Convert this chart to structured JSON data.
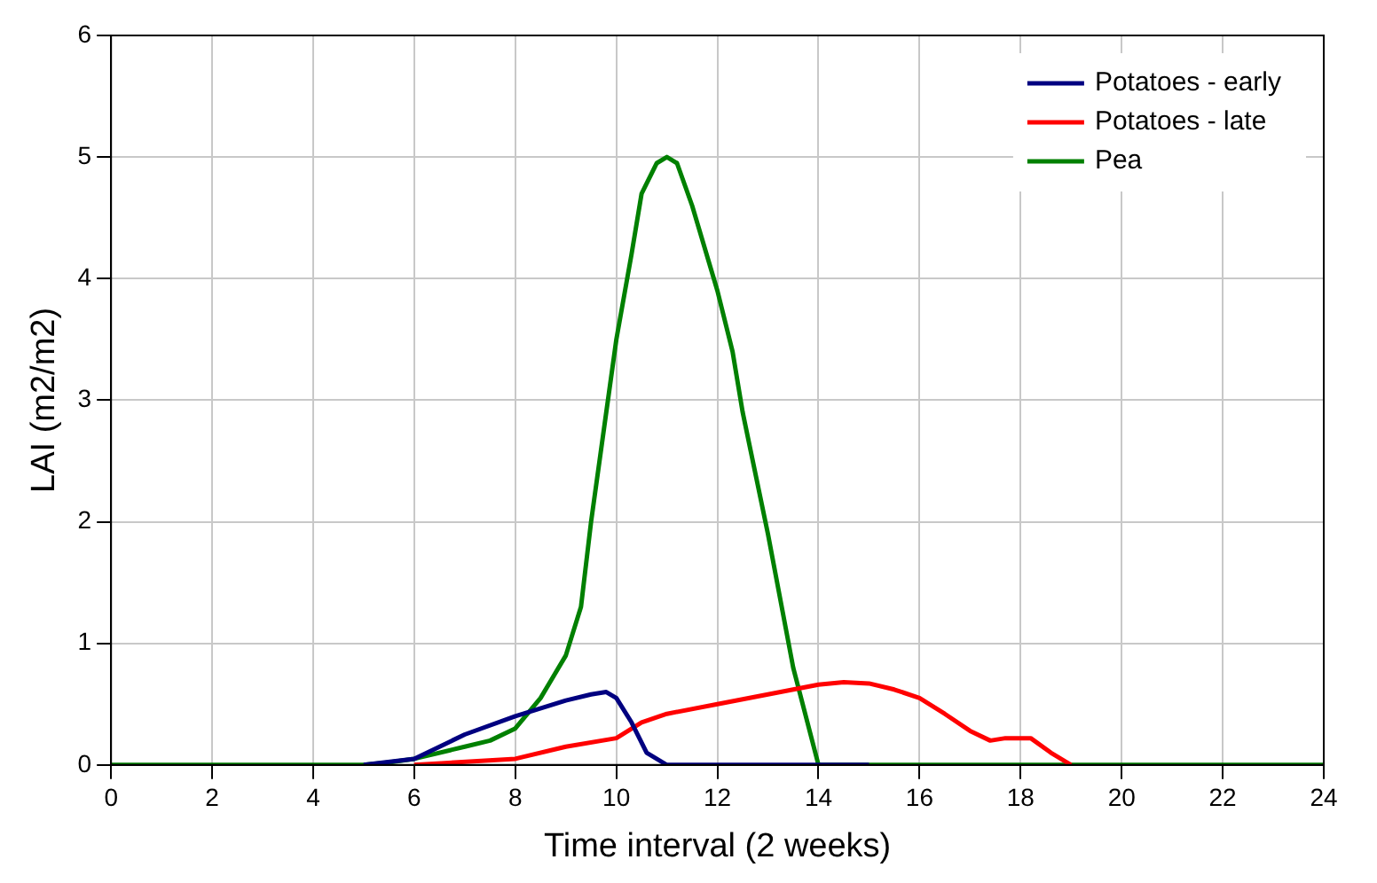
{
  "chart_data": {
    "type": "line",
    "xlabel": "Time interval (2 weeks)",
    "ylabel": "LAI (m2/m2)",
    "xlim": [
      0,
      24
    ],
    "xticks": [
      0,
      2,
      4,
      6,
      8,
      10,
      12,
      14,
      16,
      18,
      20,
      22,
      24
    ],
    "ylim": [
      0,
      6
    ],
    "yticks": [
      0,
      1,
      2,
      3,
      4,
      5,
      6
    ],
    "grid": true,
    "legend": "top right",
    "marker": "none",
    "line_style": "solid",
    "series": [
      {
        "name": "Potatoes - early",
        "color": "#000080",
        "x": [
          5,
          6,
          7,
          8,
          9,
          9.5,
          9.8,
          10,
          10.3,
          10.6,
          11,
          15
        ],
        "values": [
          0,
          0.05,
          0.25,
          0.4,
          0.53,
          0.58,
          0.6,
          0.55,
          0.35,
          0.1,
          0,
          0
        ]
      },
      {
        "name": "Potatoes - late",
        "color": "#ff0000",
        "x": [
          6,
          8,
          9,
          10,
          10.5,
          11,
          12,
          13,
          14,
          14.5,
          15,
          15.5,
          16,
          16.5,
          17,
          17.4,
          17.7,
          18.2,
          18.6,
          19
        ],
        "values": [
          0,
          0.05,
          0.15,
          0.22,
          0.35,
          0.42,
          0.5,
          0.58,
          0.66,
          0.68,
          0.67,
          0.62,
          0.55,
          0.42,
          0.28,
          0.2,
          0.22,
          0.22,
          0.1,
          0
        ]
      },
      {
        "name": "Pea",
        "color": "#008000",
        "x": [
          0,
          5,
          5.5,
          6,
          7,
          7.5,
          8,
          8.5,
          9,
          9.3,
          9.5,
          9.8,
          10,
          10.3,
          10.5,
          10.8,
          11,
          11.2,
          11.5,
          12,
          12.3,
          12.5,
          13,
          13.5,
          14,
          24
        ],
        "values": [
          0,
          0,
          0.02,
          0.05,
          0.15,
          0.2,
          0.3,
          0.55,
          0.9,
          1.3,
          2,
          2.9,
          3.5,
          4.2,
          4.7,
          4.95,
          5,
          4.95,
          4.6,
          3.9,
          3.4,
          2.9,
          1.9,
          0.8,
          0,
          0
        ]
      }
    ]
  }
}
